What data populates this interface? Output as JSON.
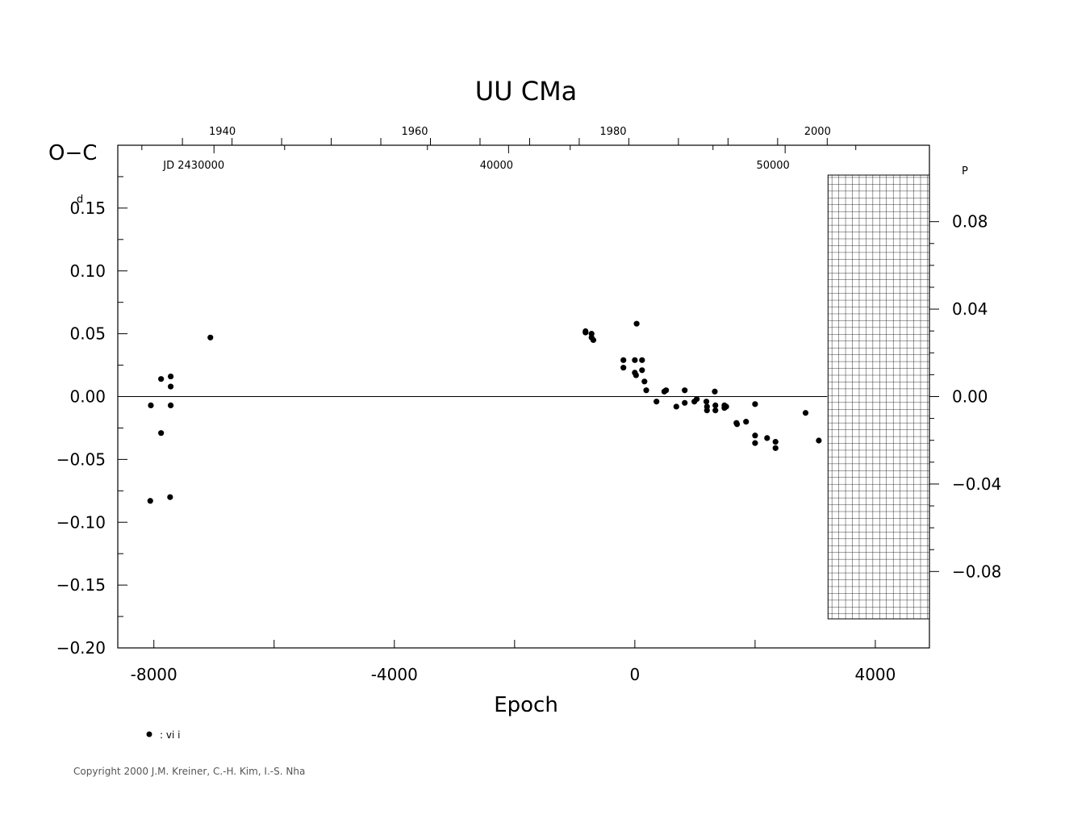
{
  "chart_data": {
    "type": "scatter",
    "title": "UU CMa",
    "xlabel": "Epoch",
    "ylabel": "O−C",
    "ylabel_unit": "d",
    "y2_unit": "P",
    "xlim": [
      -8600,
      4900
    ],
    "ylim": [
      -0.2,
      0.2
    ],
    "x_ticks": [
      "-8000",
      "-4000",
      "0",
      "4000"
    ],
    "y_ticks": [
      "0.15",
      "0.10",
      "0.05",
      "0.00",
      "−0.05",
      "−0.10",
      "−0.15",
      "−0.20"
    ],
    "y2_ticks": [
      "0.08",
      "0.04",
      "0.00",
      "−0.04",
      "−0.08"
    ],
    "y2_values": [
      0.08,
      0.04,
      0.0,
      -0.04,
      -0.08
    ],
    "y2_ratio": 0.5747,
    "top_year_ticks": [
      "1940",
      "1960",
      "1980",
      "2000"
    ],
    "top_year_epochs": [
      -6700,
      -3500,
      -200,
      3200
    ],
    "jd_labels": [
      "JD 2430000",
      "40000",
      "50000"
    ],
    "jd_epochs": [
      -7000,
      -2100,
      2500
    ],
    "hatched_region_from_epoch": 3200,
    "series": [
      {
        "name": ": vi i",
        "points": [
          [
            -8050,
            -0.007
          ],
          [
            -8060,
            -0.083
          ],
          [
            -7880,
            0.014
          ],
          [
            -7880,
            -0.029
          ],
          [
            -7720,
            0.016
          ],
          [
            -7720,
            0.008
          ],
          [
            -7720,
            -0.007
          ],
          [
            -7730,
            -0.08
          ],
          [
            -7060,
            0.047
          ],
          [
            -820,
            0.052
          ],
          [
            -820,
            0.051
          ],
          [
            -720,
            0.05
          ],
          [
            -720,
            0.047
          ],
          [
            -690,
            0.045
          ],
          [
            -190,
            0.029
          ],
          [
            -190,
            0.023
          ],
          [
            0,
            0.029
          ],
          [
            0,
            0.019
          ],
          [
            20,
            0.017
          ],
          [
            30,
            0.058
          ],
          [
            120,
            0.029
          ],
          [
            120,
            0.021
          ],
          [
            160,
            0.012
          ],
          [
            190,
            0.005
          ],
          [
            360,
            -0.004
          ],
          [
            490,
            0.004
          ],
          [
            520,
            0.005
          ],
          [
            690,
            -0.008
          ],
          [
            830,
            0.005
          ],
          [
            830,
            -0.005
          ],
          [
            990,
            -0.004
          ],
          [
            1030,
            -0.002
          ],
          [
            1190,
            -0.004
          ],
          [
            1200,
            -0.008
          ],
          [
            1200,
            -0.011
          ],
          [
            1330,
            0.004
          ],
          [
            1340,
            -0.007
          ],
          [
            1340,
            -0.011
          ],
          [
            1490,
            -0.007
          ],
          [
            1490,
            -0.009
          ],
          [
            1520,
            -0.008
          ],
          [
            1690,
            -0.021
          ],
          [
            1700,
            -0.022
          ],
          [
            1850,
            -0.02
          ],
          [
            2000,
            -0.006
          ],
          [
            2000,
            -0.031
          ],
          [
            2000,
            -0.037
          ],
          [
            2200,
            -0.033
          ],
          [
            2340,
            -0.036
          ],
          [
            2340,
            -0.041
          ],
          [
            2840,
            -0.013
          ],
          [
            3060,
            -0.035
          ]
        ]
      }
    ]
  },
  "copyright": "Copyright 2000 J.M. Kreiner, C.-H. Kim, I.-S. Nha"
}
